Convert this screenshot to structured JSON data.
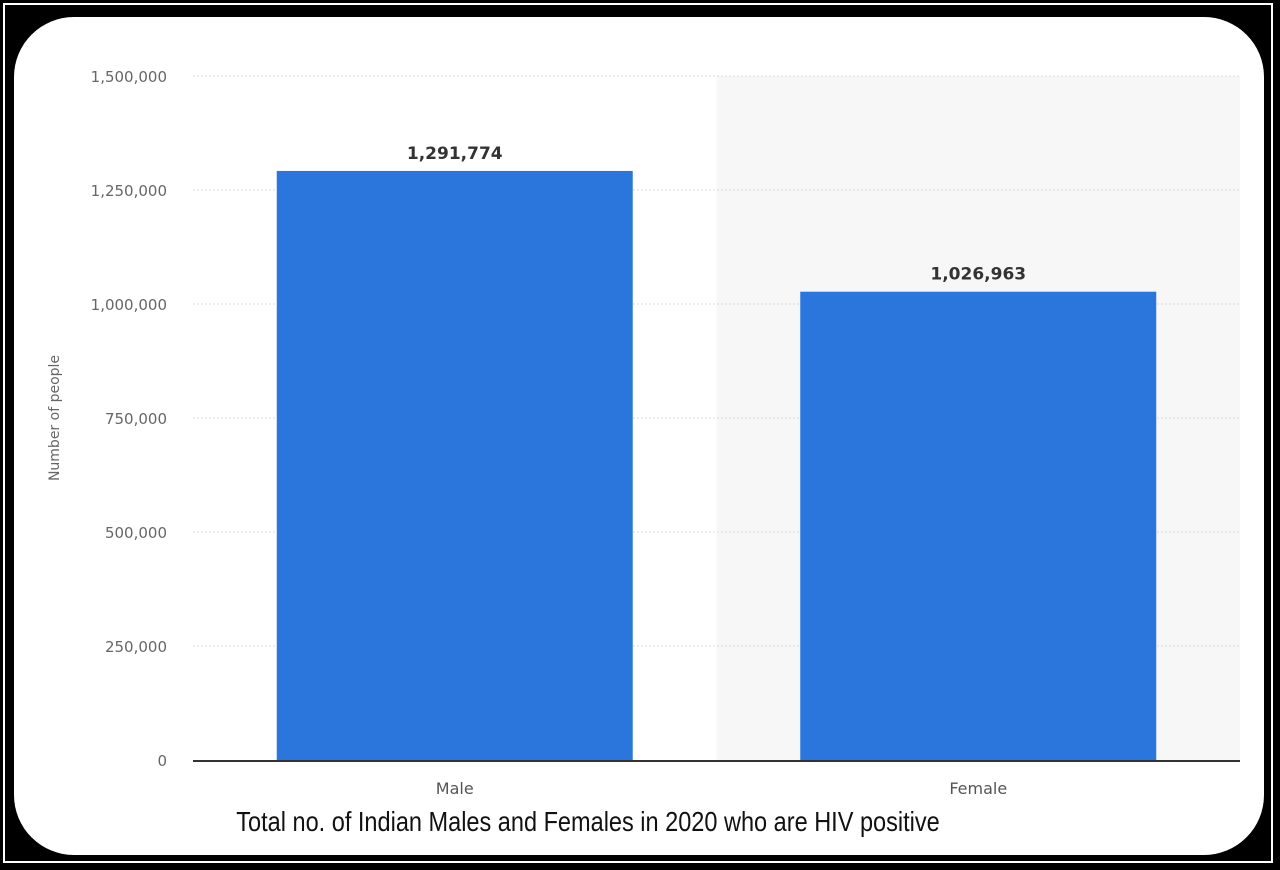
{
  "chart_data": {
    "type": "bar",
    "categories": [
      "Male",
      "Female"
    ],
    "values": [
      1291774,
      1026963
    ],
    "value_labels": [
      "1,291,774",
      "1,026,963"
    ],
    "title": "",
    "xlabel": "",
    "ylabel": "Number of people",
    "ylim": [
      0,
      1500000
    ],
    "yticks": [
      0,
      250000,
      500000,
      750000,
      1000000,
      1250000,
      1500000
    ],
    "ytick_labels": [
      "0",
      "250,000",
      "500,000",
      "750,000",
      "1,000,000",
      "1,250,000",
      "1,500,000"
    ],
    "grid": true,
    "bar_color": "#2A76DD",
    "highlight_band_color": "#F7F7F7"
  },
  "caption": "Total no. of Indian Males and Females in 2020 who are HIV positive"
}
